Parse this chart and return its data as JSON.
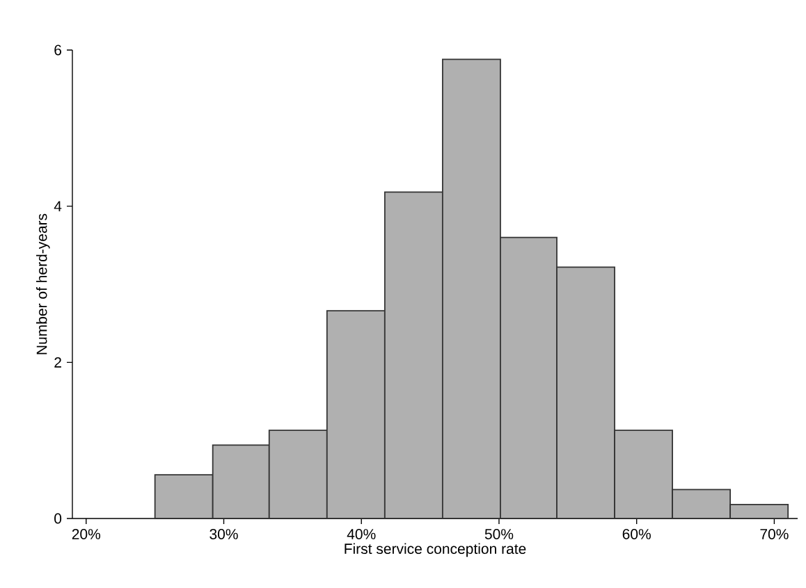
{
  "chart_data": {
    "type": "histogram",
    "xlabel": "First service conception rate",
    "ylabel": "Number of herd-years",
    "bins": [
      25.0,
      29.2,
      33.3,
      37.5,
      41.7,
      45.9,
      50.1,
      54.2,
      58.4,
      62.6,
      66.8,
      71.0
    ],
    "values": [
      0.56,
      0.94,
      1.13,
      2.66,
      4.18,
      5.88,
      3.6,
      3.22,
      1.13,
      0.37,
      0.18
    ],
    "color": "#b0b0b0",
    "xlim": [
      19,
      71.7
    ],
    "ylim": [
      0,
      6
    ],
    "xticks": [
      {
        "value": 20,
        "label": "20%"
      },
      {
        "value": 30,
        "label": "30%"
      },
      {
        "value": 40,
        "label": "40%"
      },
      {
        "value": 50,
        "label": "50%"
      },
      {
        "value": 60,
        "label": "60%"
      },
      {
        "value": 70,
        "label": "70%"
      }
    ],
    "yticks": [
      0,
      2,
      4,
      6
    ],
    "grid": false
  }
}
